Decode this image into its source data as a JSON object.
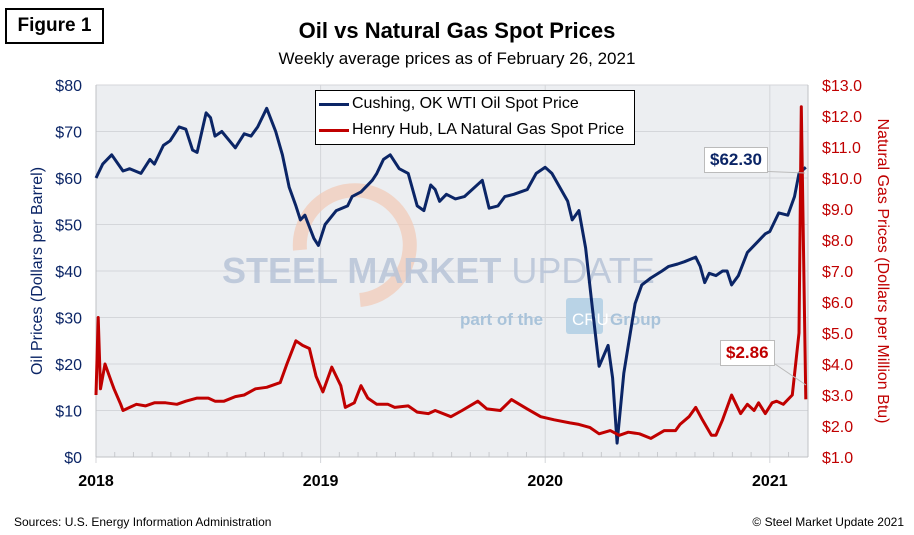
{
  "figure_label": "Figure 1",
  "sources": "Sources: U.S. Energy Information Administration",
  "copyright": "© Steel Market Update 2021",
  "watermark": {
    "main": "STEEL MARKET UPDATE",
    "sub": "part of the CRU Group"
  },
  "chart_data": {
    "type": "line",
    "title": "Oil vs Natural Gas Spot Prices",
    "subtitle": "Weekly average prices as of February 26, 2021",
    "xlabel": "",
    "ylabel": "Oil Prices (Dollars per Barrel)",
    "y2label": "Natural Gas Prices (Dollars per Million Btu)",
    "xlim": [
      2018.0,
      3.17
    ],
    "xticks": [
      "2018",
      "2019",
      "2020",
      "2021"
    ],
    "ylim": [
      0,
      80
    ],
    "yticks": [
      "$0",
      "$10",
      "$20",
      "$30",
      "$40",
      "$50",
      "$60",
      "$70",
      "$80"
    ],
    "y2lim": [
      1.0,
      13.0
    ],
    "y2ticks": [
      "$1.0",
      "$2.0",
      "$3.0",
      "$4.0",
      "$5.0",
      "$6.0",
      "$7.0",
      "$8.0",
      "$9.0",
      "$10.0",
      "$11.0",
      "$12.0",
      "$13.0"
    ],
    "grid": true,
    "legend_position": "top-center",
    "colors": {
      "oil": "#0B2566",
      "gas": "#C00000",
      "plot_bg": "#ECEEF1"
    },
    "series": [
      {
        "name": "Cushing, OK WTI Oil Spot Price",
        "axis": "left",
        "years_since_2018": [
          0,
          0.03,
          0.07,
          0.12,
          0.15,
          0.2,
          0.24,
          0.26,
          0.3,
          0.33,
          0.37,
          0.4,
          0.43,
          0.45,
          0.49,
          0.51,
          0.53,
          0.56,
          0.62,
          0.66,
          0.69,
          0.72,
          0.76,
          0.8,
          0.83,
          0.86,
          0.89,
          0.91,
          0.93,
          0.97,
          0.99,
          1.02,
          1.07,
          1.12,
          1.14,
          1.18,
          1.23,
          1.25,
          1.28,
          1.31,
          1.35,
          1.39,
          1.43,
          1.46,
          1.49,
          1.51,
          1.53,
          1.56,
          1.6,
          1.64,
          1.72,
          1.75,
          1.79,
          1.82,
          1.86,
          1.92,
          1.96,
          2.0,
          2.03,
          2.1,
          2.12,
          2.15,
          2.18,
          2.21,
          2.24,
          2.28,
          2.3,
          2.32,
          2.35,
          2.37,
          2.4,
          2.43,
          2.47,
          2.52,
          2.55,
          2.59,
          2.62,
          2.67,
          2.69,
          2.71,
          2.73,
          2.76,
          2.79,
          2.81,
          2.83,
          2.86,
          2.9,
          2.95,
          2.98,
          3.0,
          3.04,
          3.08,
          3.11,
          3.13,
          3.16
        ],
        "values": [
          60,
          63,
          65,
          61.5,
          62,
          61,
          64,
          63,
          67,
          68,
          71,
          70.5,
          66,
          65.5,
          74,
          73,
          69,
          70,
          66.5,
          69.5,
          69,
          71,
          75,
          70,
          65,
          58,
          54,
          51,
          52,
          47,
          45.5,
          50,
          53,
          54,
          56,
          57,
          59.5,
          61,
          64,
          65,
          62,
          61,
          54,
          53,
          58.5,
          57.5,
          55,
          56.5,
          55.5,
          56,
          59.5,
          53.5,
          54,
          56,
          56.5,
          57.5,
          61,
          62.3,
          61,
          55,
          51,
          53,
          45,
          32,
          19.5,
          24,
          17,
          3,
          18,
          24,
          33,
          37,
          38.5,
          40,
          41,
          41.5,
          42,
          43,
          41,
          37.5,
          39.5,
          39,
          40,
          40,
          37,
          39,
          44,
          46.5,
          48,
          48.5,
          52.5,
          52,
          56,
          61,
          62.3
        ],
        "last_label": "$62.30"
      },
      {
        "name": "Henry Hub, LA Natural Gas Spot Price",
        "axis": "right",
        "years_since_2018": [
          0,
          0.01,
          0.02,
          0.04,
          0.07,
          0.08,
          0.11,
          0.12,
          0.15,
          0.18,
          0.22,
          0.26,
          0.31,
          0.36,
          0.4,
          0.45,
          0.5,
          0.53,
          0.57,
          0.62,
          0.66,
          0.71,
          0.76,
          0.82,
          0.85,
          0.89,
          0.92,
          0.95,
          0.98,
          1.01,
          1.05,
          1.09,
          1.11,
          1.15,
          1.18,
          1.21,
          1.25,
          1.3,
          1.33,
          1.39,
          1.43,
          1.48,
          1.51,
          1.58,
          1.63,
          1.7,
          1.74,
          1.8,
          1.85,
          1.92,
          1.98,
          2.04,
          2.11,
          2.15,
          2.2,
          2.24,
          2.29,
          2.33,
          2.37,
          2.42,
          2.47,
          2.53,
          2.58,
          2.6,
          2.64,
          2.67,
          2.7,
          2.74,
          2.76,
          2.79,
          2.83,
          2.85,
          2.87,
          2.9,
          2.93,
          2.95,
          2.98,
          3.01,
          3.03,
          3.06,
          3.1,
          3.13,
          3.14,
          3.16
        ],
        "values": [
          3.0,
          5.5,
          3.2,
          4.0,
          3.4,
          3.2,
          2.7,
          2.5,
          2.6,
          2.7,
          2.65,
          2.75,
          2.75,
          2.7,
          2.8,
          2.9,
          2.9,
          2.8,
          2.8,
          2.95,
          3.0,
          3.2,
          3.25,
          3.4,
          4.0,
          4.75,
          4.6,
          4.5,
          3.6,
          3.1,
          3.9,
          3.3,
          2.6,
          2.75,
          3.3,
          2.9,
          2.7,
          2.7,
          2.6,
          2.65,
          2.45,
          2.4,
          2.5,
          2.3,
          2.5,
          2.8,
          2.55,
          2.5,
          2.85,
          2.55,
          2.3,
          2.2,
          2.1,
          2.05,
          1.95,
          1.75,
          1.85,
          1.7,
          1.8,
          1.75,
          1.6,
          1.85,
          1.85,
          2.05,
          2.3,
          2.6,
          2.2,
          1.7,
          1.7,
          2.2,
          3.0,
          2.7,
          2.4,
          2.7,
          2.5,
          2.75,
          2.4,
          2.75,
          2.8,
          2.7,
          3.0,
          5.0,
          12.3,
          2.86
        ],
        "last_label": "$2.86"
      }
    ]
  }
}
